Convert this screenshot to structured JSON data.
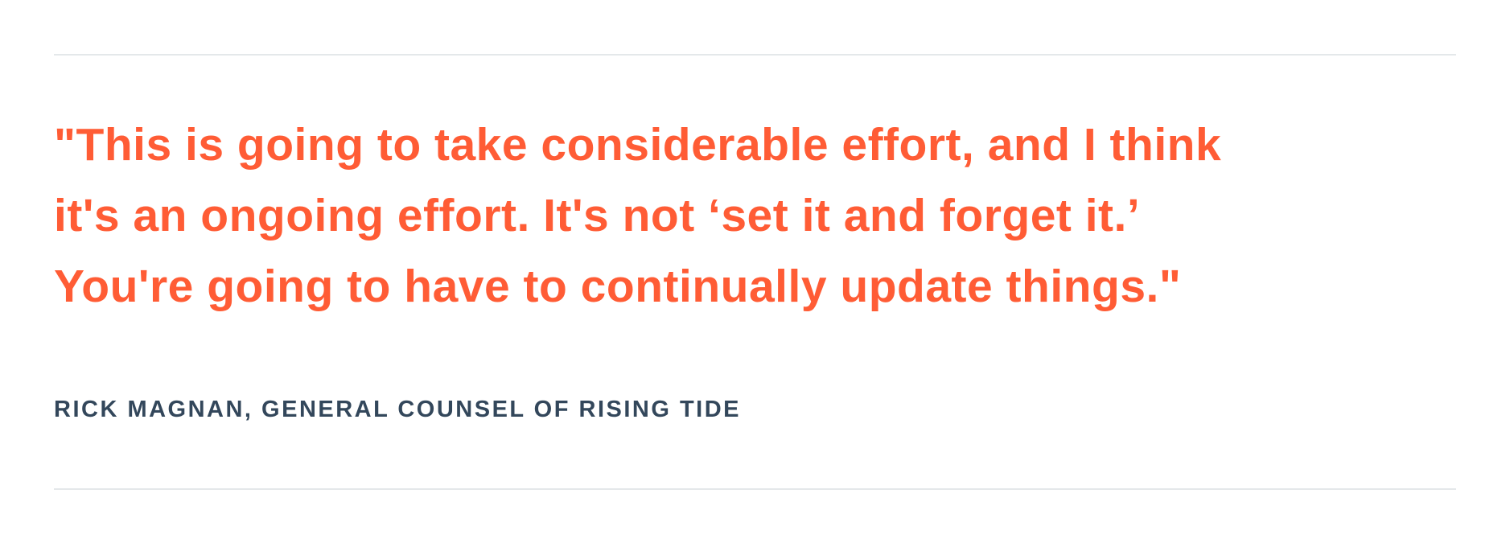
{
  "pull_quote": {
    "text": "\"This is going to take considerable effort, and I think it's an ongoing effort. It's not ‘set it and forget it.’ You're going to have to continually update things.\"",
    "lines": [
      "\"This is going to take considerable effort, and I think",
      "it's an ongoing effort. It's not ‘set it and forget it.’",
      "You're going to have to continually update things.\""
    ],
    "color": "#FF5C35"
  },
  "attribution": {
    "text": "RICK MAGNAN, GENERAL COUNSEL OF RISING TIDE",
    "name": "Rick Magnan",
    "title": "General Counsel of Rising Tide",
    "color": "#33475B"
  },
  "divider": {
    "color": "#E4E8EA"
  }
}
